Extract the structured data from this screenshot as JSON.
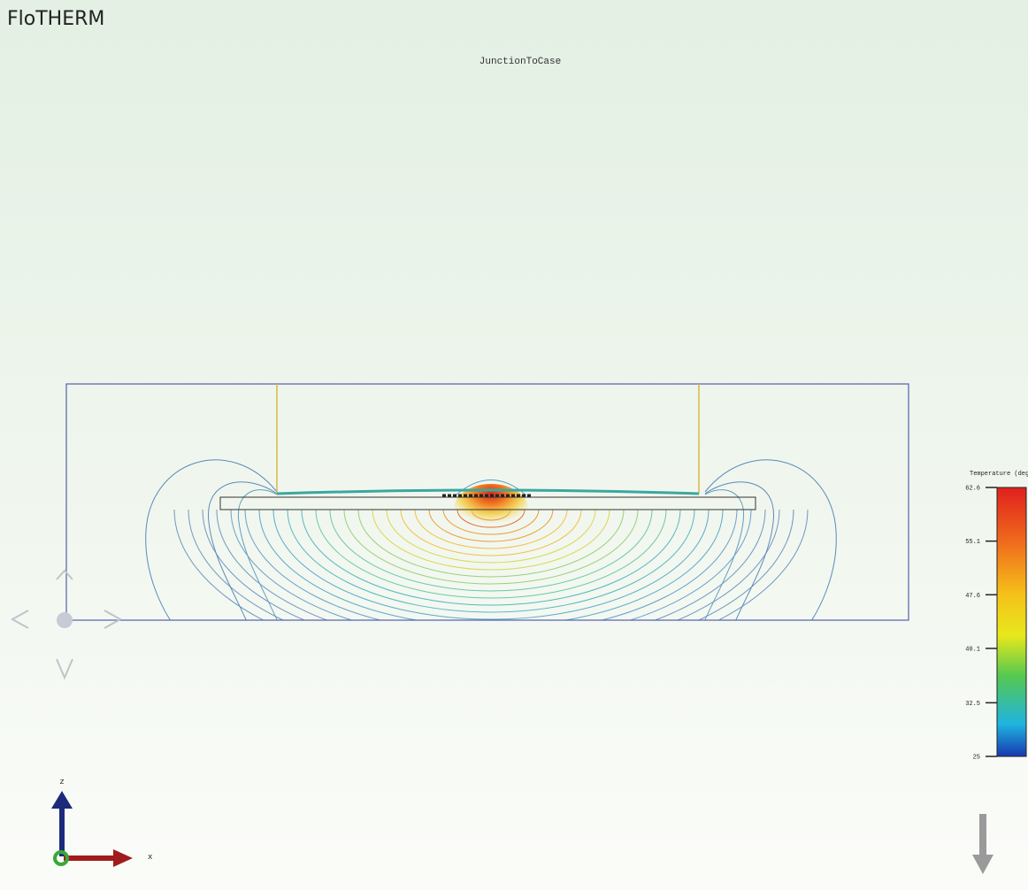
{
  "app": {
    "title": "FloTHERM"
  },
  "view": {
    "title": "JunctionToCase"
  },
  "colorbar": {
    "title": "Temperature (degC)",
    "lim": [
      25,
      62.6
    ],
    "ticks": [
      62.6,
      55.1,
      47.6,
      40.1,
      32.5,
      25
    ]
  },
  "axes_triad": {
    "z": "z",
    "x": "x"
  }
}
